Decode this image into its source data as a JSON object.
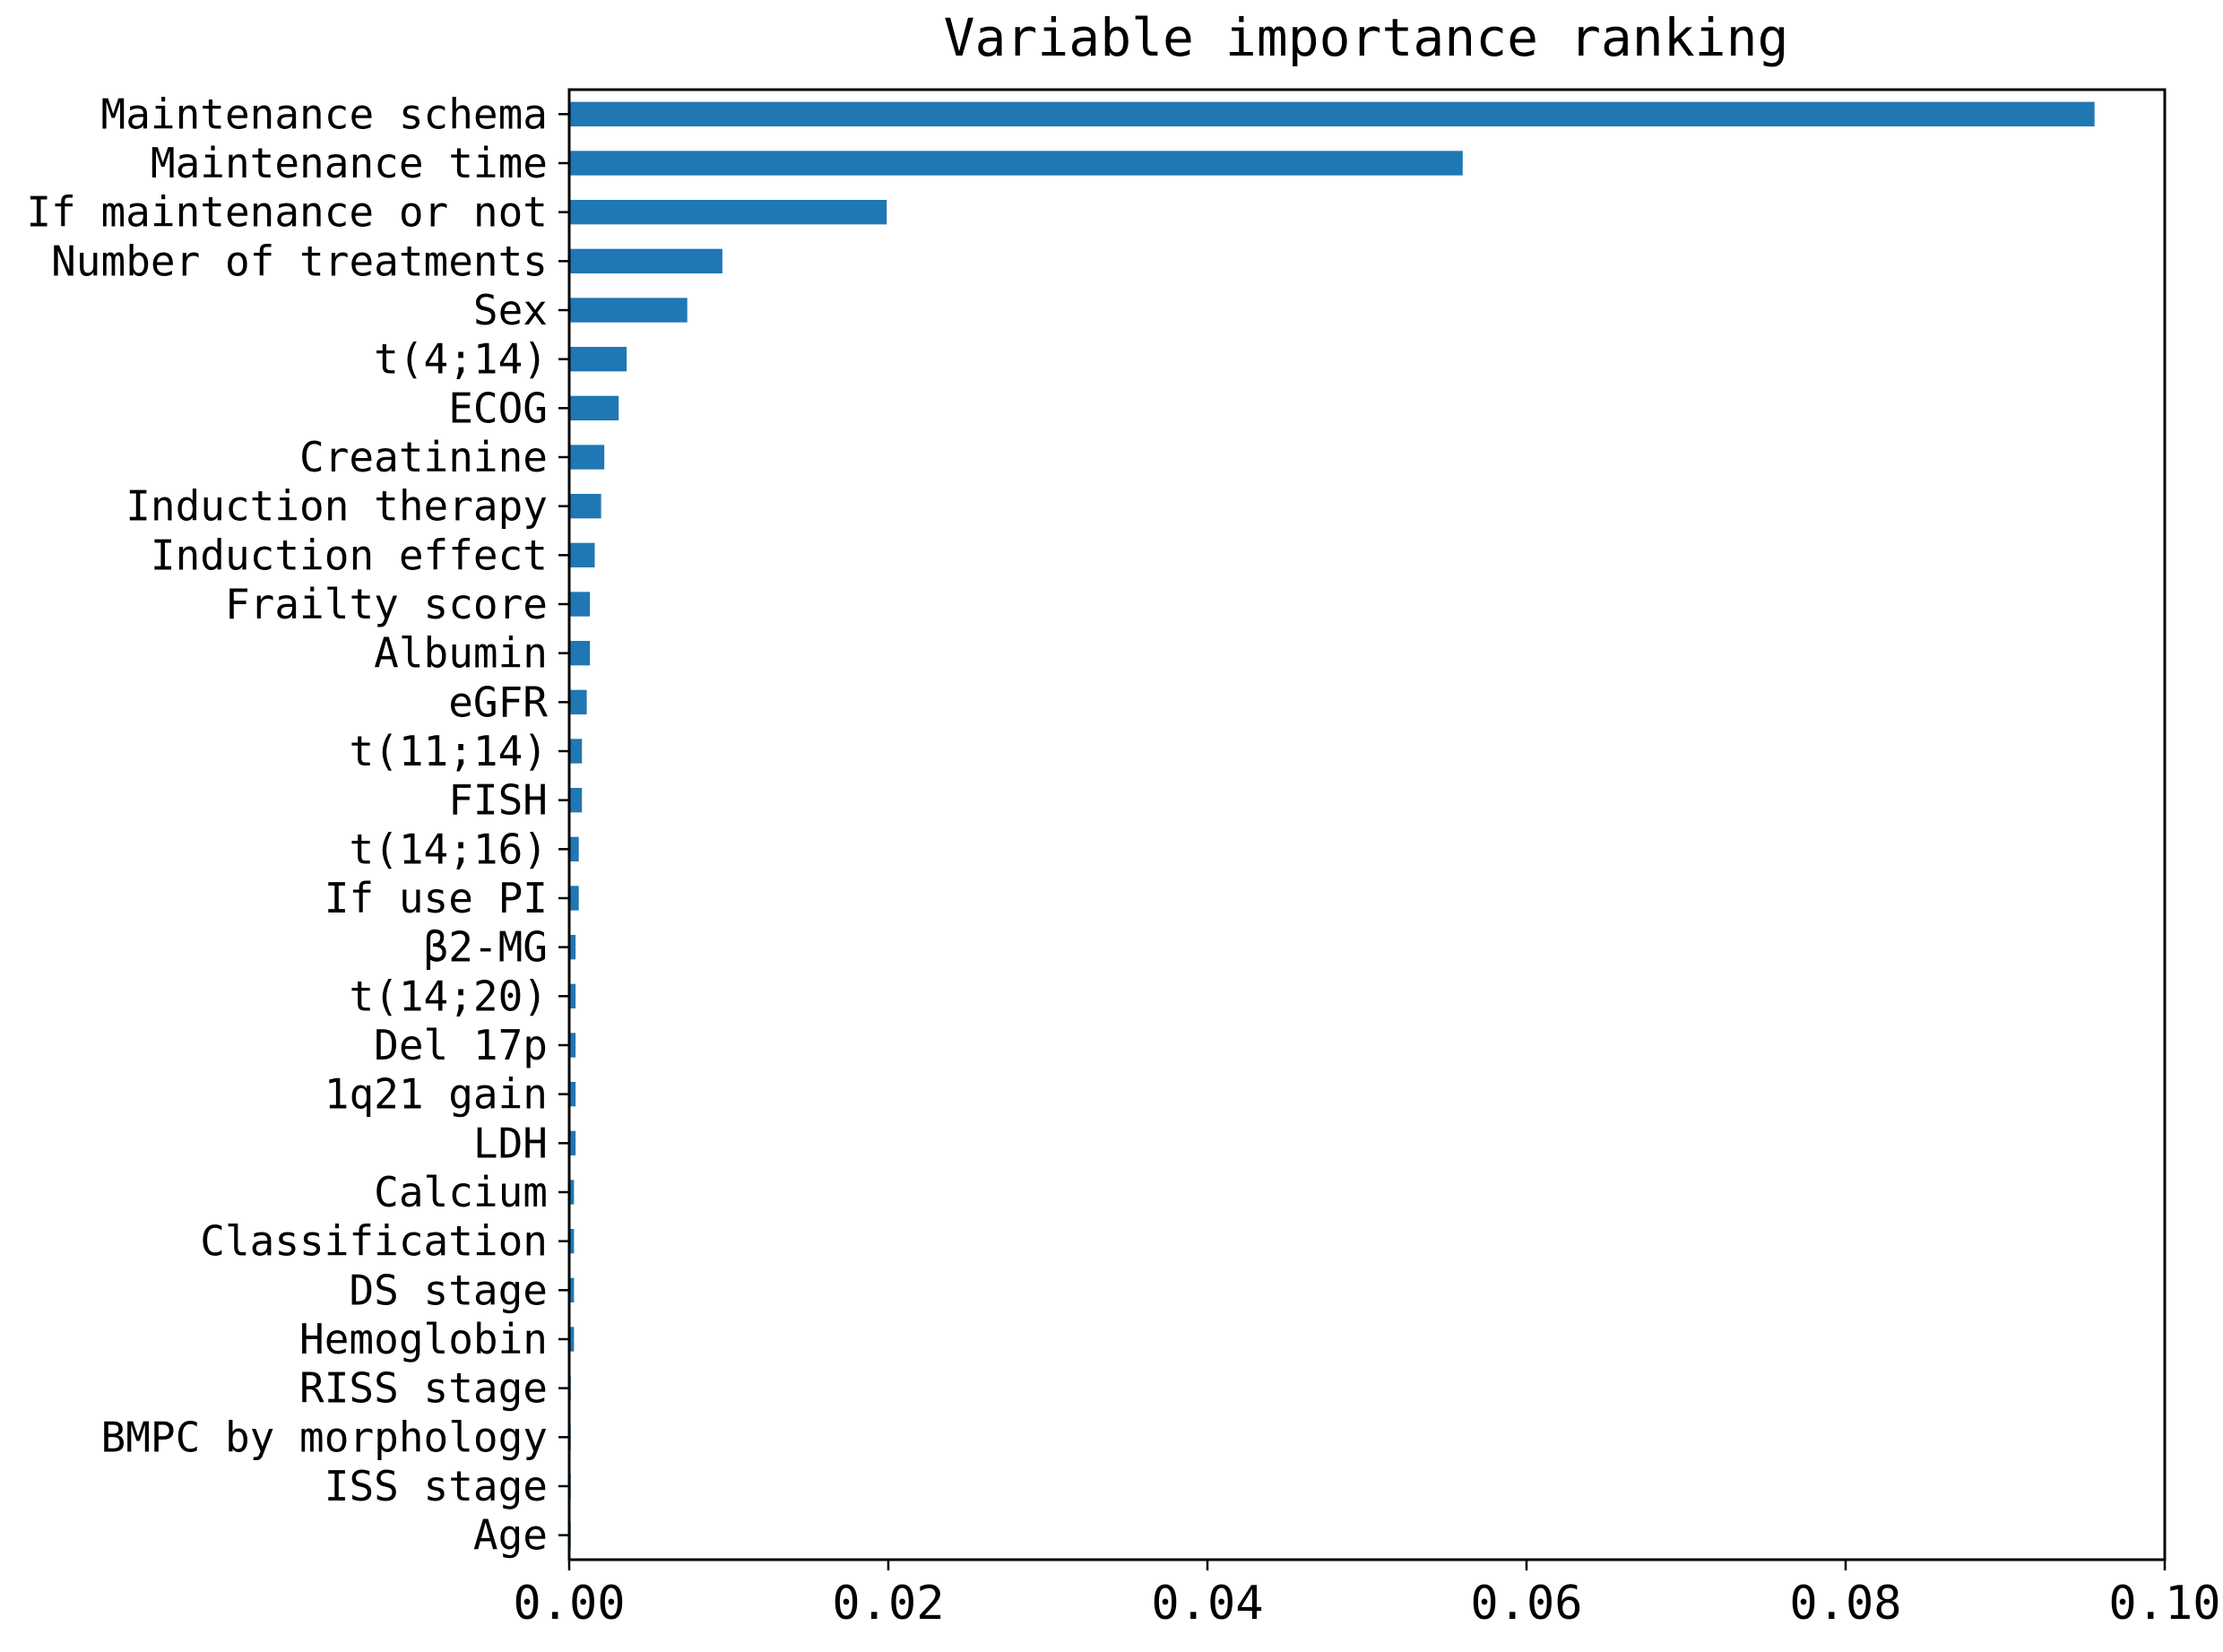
{
  "chart_data": {
    "type": "bar",
    "orientation": "horizontal",
    "title": "Variable importance ranking",
    "xlabel": "",
    "ylabel": "",
    "xlim": [
      0,
      0.1
    ],
    "x_ticks": [
      "0.00",
      "0.02",
      "0.04",
      "0.06",
      "0.08",
      "0.10"
    ],
    "grid": false,
    "legend": "none",
    "bar_color": "#1f77b4",
    "categories": [
      "Maintenance schema",
      "Maintenance time",
      "If maintenance or not",
      "Number of treatments",
      "Sex",
      "t(4;14)",
      "ECOG",
      "Creatinine",
      "Induction therapy",
      "Induction effect",
      "Frailty score",
      "Albumin",
      "eGFR",
      "t(11;14)",
      "FISH",
      "t(14;16)",
      "If use PI",
      "β2-MG",
      "t(14;20)",
      "Del 17p",
      "1q21 gain",
      "LDH",
      "Calcium",
      "Classification",
      "DS stage",
      "Hemoglobin",
      "RISS stage",
      "BMPC by morphology",
      "ISS stage",
      "Age"
    ],
    "values": [
      0.0956,
      0.056,
      0.0199,
      0.0096,
      0.0074,
      0.0036,
      0.0031,
      0.0022,
      0.002,
      0.0016,
      0.0013,
      0.0013,
      0.0011,
      0.0008,
      0.0008,
      0.0006,
      0.0006,
      0.0004,
      0.0004,
      0.0004,
      0.0004,
      0.0004,
      0.0003,
      0.0003,
      0.0003,
      0.0003,
      0.0001,
      0.0001,
      0.0001,
      0.0001
    ]
  }
}
